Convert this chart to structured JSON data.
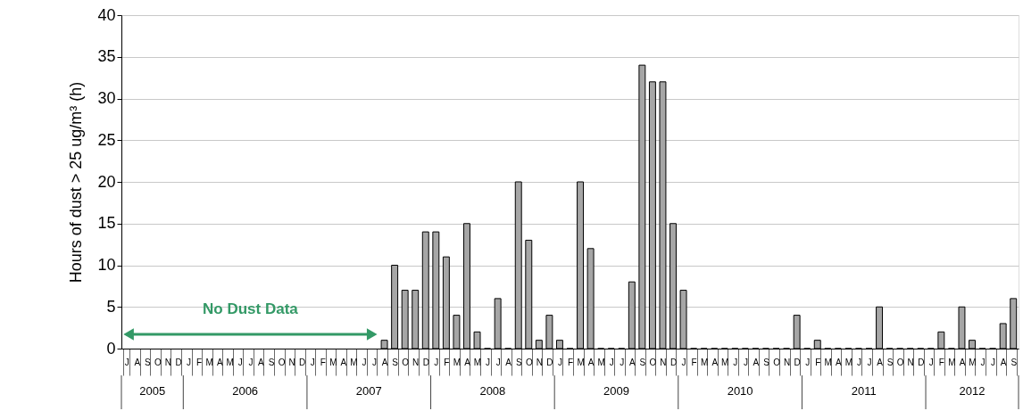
{
  "chart_data": {
    "type": "bar",
    "ylabel": "Hours of dust > 25 ug/m³ (h)",
    "categories": [
      "J",
      "A",
      "S",
      "O",
      "N",
      "D",
      "J",
      "F",
      "M",
      "A",
      "M",
      "J",
      "J",
      "A",
      "S",
      "O",
      "N",
      "D",
      "J",
      "F",
      "M",
      "A",
      "M",
      "J",
      "J",
      "A",
      "S",
      "O",
      "N",
      "D",
      "J",
      "F",
      "M",
      "A",
      "M",
      "J",
      "J",
      "A",
      "S",
      "O",
      "N",
      "D",
      "J",
      "F",
      "M",
      "A",
      "M",
      "J",
      "J",
      "A",
      "S",
      "O",
      "N",
      "D",
      "J",
      "F",
      "M",
      "A",
      "M",
      "J",
      "J",
      "A",
      "S",
      "O",
      "N",
      "D",
      "J",
      "F",
      "M",
      "A",
      "M",
      "J",
      "J",
      "A",
      "S",
      "O",
      "N",
      "D",
      "J",
      "F",
      "M",
      "A",
      "M",
      "J",
      "J",
      "A",
      "S"
    ],
    "values": [
      null,
      null,
      null,
      null,
      null,
      null,
      null,
      null,
      null,
      null,
      null,
      null,
      null,
      null,
      null,
      null,
      null,
      null,
      null,
      null,
      null,
      null,
      null,
      null,
      null,
      1,
      10,
      7,
      7,
      14,
      14,
      11,
      4,
      15,
      2,
      0,
      6,
      0,
      20,
      13,
      1,
      4,
      1,
      0,
      20,
      12,
      0,
      0,
      0,
      8,
      34,
      32,
      32,
      15,
      7,
      0,
      0,
      0,
      0,
      0,
      0,
      0,
      0,
      0,
      0,
      4,
      0,
      1,
      0,
      0,
      0,
      0,
      0,
      5,
      0,
      0,
      0,
      0,
      0,
      2,
      0,
      5,
      1,
      0,
      0,
      3,
      6
    ],
    "color": "#a6a6a6",
    "ylim": [
      0,
      40
    ],
    "yticks": [
      0,
      5,
      10,
      15,
      20,
      25,
      30,
      35,
      40
    ],
    "grid": "y",
    "annotations": [
      "2005",
      "2006",
      "2007",
      "2008",
      "2009",
      "2010",
      "2011",
      "2012",
      "No Dust Data"
    ]
  }
}
